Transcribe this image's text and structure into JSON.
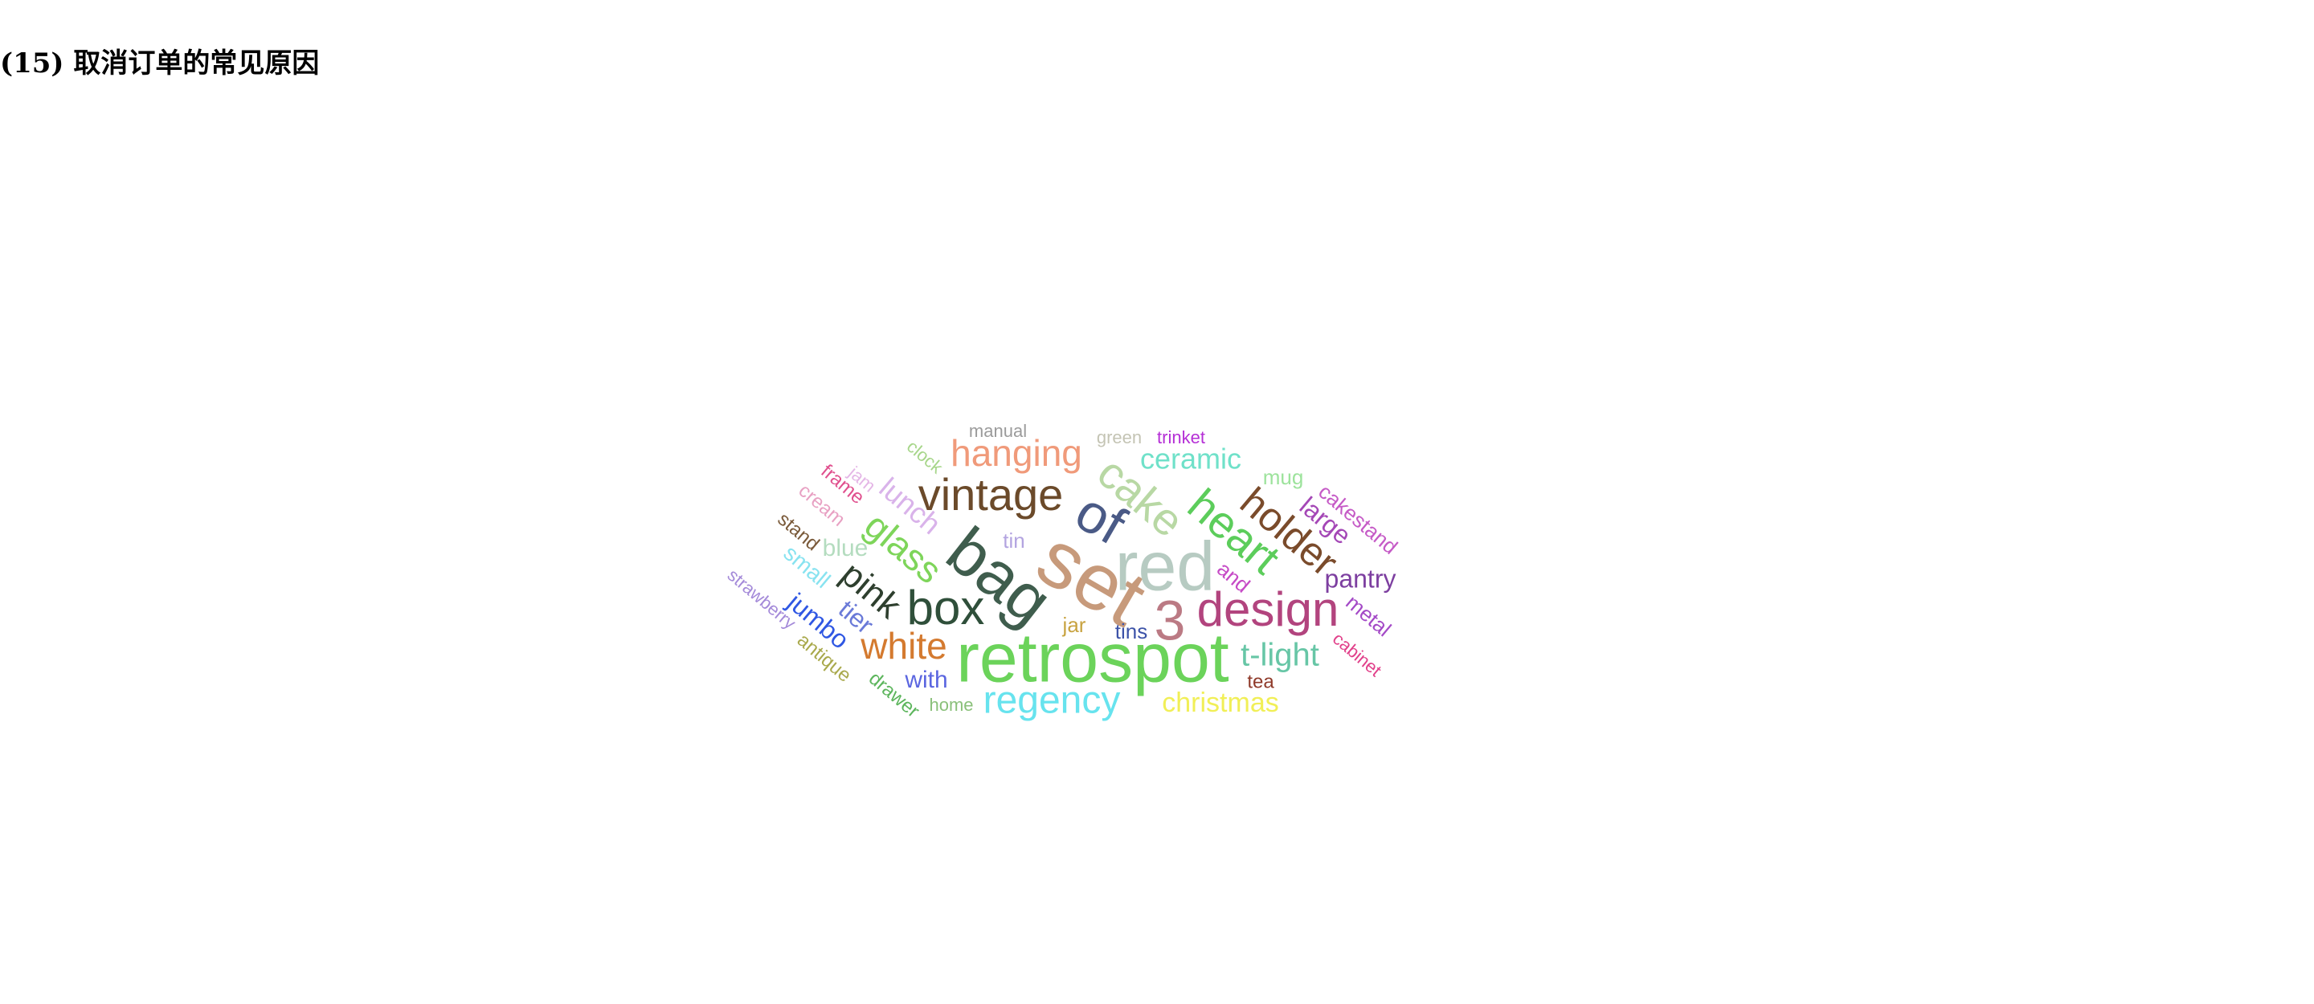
{
  "header": {
    "title": "(15) 取消订单的常见原因"
  },
  "wordcloud": {
    "words": [
      {
        "text": "retrospot",
        "color": "#6bd35a"
      },
      {
        "text": "set",
        "color": "#c79a7b"
      },
      {
        "text": "red",
        "color": "#b7cbc2"
      },
      {
        "text": "bag",
        "color": "#3f5d4d"
      },
      {
        "text": "of",
        "color": "#4a5a86"
      },
      {
        "text": "3",
        "color": "#bb7a84"
      },
      {
        "text": "box",
        "color": "#2f4f3a"
      },
      {
        "text": "design",
        "color": "#b2447e"
      },
      {
        "text": "vintage",
        "color": "#6b4a2a"
      },
      {
        "text": "cake",
        "color": "#b8d8a4"
      },
      {
        "text": "heart",
        "color": "#5ccd5b"
      },
      {
        "text": "holder",
        "color": "#7a4b2b"
      },
      {
        "text": "hanging",
        "color": "#f09a7a"
      },
      {
        "text": "ceramic",
        "color": "#6fe1c9"
      },
      {
        "text": "regency",
        "color": "#67e3ee"
      },
      {
        "text": "white",
        "color": "#d47a2f"
      },
      {
        "text": "t-light",
        "color": "#67c6a6"
      },
      {
        "text": "glass",
        "color": "#7ed55a"
      },
      {
        "text": "pink",
        "color": "#2e3f2e"
      },
      {
        "text": "lunch",
        "color": "#d9b3ea"
      },
      {
        "text": "christmas",
        "color": "#f1ef57"
      },
      {
        "text": "pantry",
        "color": "#7d3fa0"
      },
      {
        "text": "large",
        "color": "#a447b6"
      },
      {
        "text": "mug",
        "color": "#9de39c"
      },
      {
        "text": "cakestand",
        "color": "#c55ac6"
      },
      {
        "text": "metal",
        "color": "#a44ac7"
      },
      {
        "text": "cabinet",
        "color": "#e1408a"
      },
      {
        "text": "tea",
        "color": "#8f3a2a"
      },
      {
        "text": "and",
        "color": "#c64ac6"
      },
      {
        "text": "tins",
        "color": "#3d53a8"
      },
      {
        "text": "jar",
        "color": "#c8a341"
      },
      {
        "text": "tin",
        "color": "#b3a4e0"
      },
      {
        "text": "with",
        "color": "#5b66e0"
      },
      {
        "text": "home",
        "color": "#8ac07a"
      },
      {
        "text": "drawer",
        "color": "#5cb55c"
      },
      {
        "text": "antique",
        "color": "#a9a94c"
      },
      {
        "text": "jumbo",
        "color": "#2f57e3"
      },
      {
        "text": "tier",
        "color": "#6a7ad8"
      },
      {
        "text": "strawberry",
        "color": "#a48ad9"
      },
      {
        "text": "small",
        "color": "#88e3f0"
      },
      {
        "text": "blue",
        "color": "#b4dcbf"
      },
      {
        "text": "stand",
        "color": "#7a5a3a"
      },
      {
        "text": "cream",
        "color": "#e8a1c3"
      },
      {
        "text": "frame",
        "color": "#e0508e"
      },
      {
        "text": "jam",
        "color": "#e4b6e6"
      },
      {
        "text": "clock",
        "color": "#a7d68a"
      },
      {
        "text": "manual",
        "color": "#9b9b9b"
      },
      {
        "text": "green",
        "color": "#c4c4b4"
      },
      {
        "text": "trinket",
        "color": "#b52fd6"
      }
    ]
  }
}
